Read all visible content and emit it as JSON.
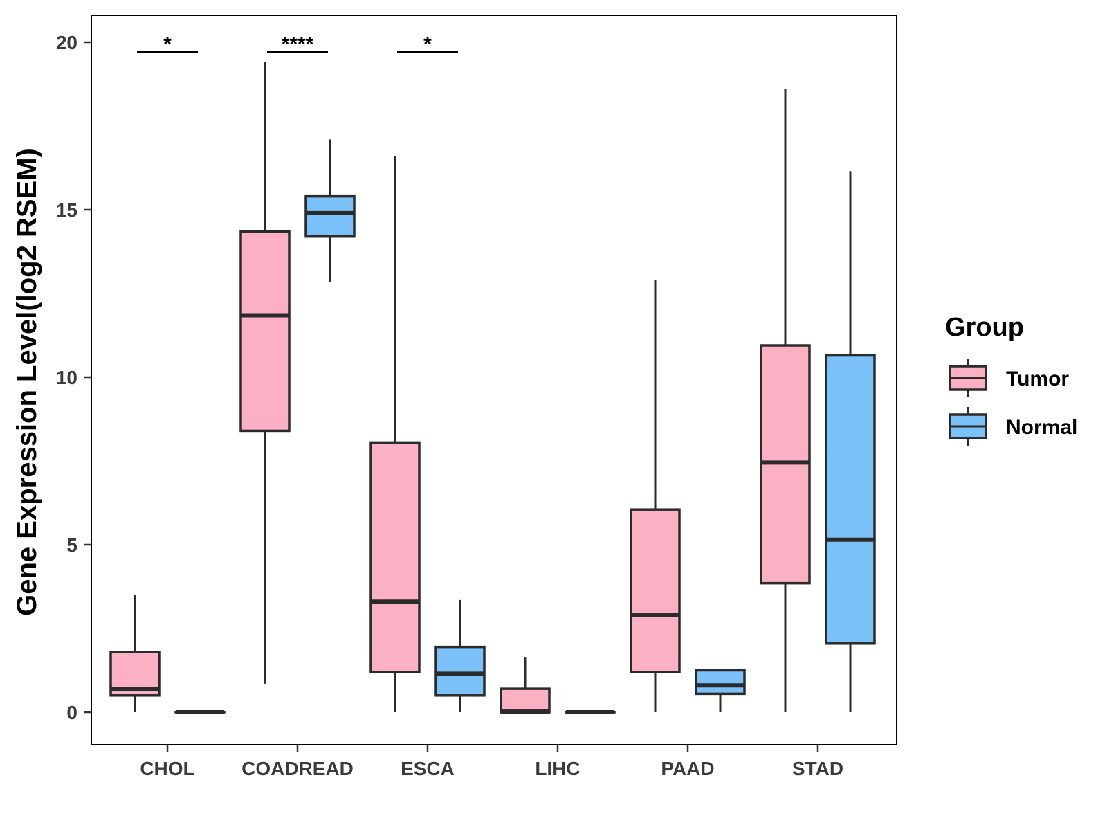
{
  "chart_data": {
    "type": "box",
    "title": "",
    "xlabel": "",
    "ylabel": "Gene Expression Level(log2 RSEM)",
    "ylim": [
      -1,
      20.8
    ],
    "yticks": [
      0,
      5,
      10,
      15,
      20
    ],
    "ytick_labels": [
      "0",
      "5",
      "10",
      "15",
      "20"
    ],
    "categories": [
      "CHOL",
      "COADREAD",
      "ESCA",
      "LIHC",
      "PAAD",
      "STAD"
    ],
    "legend": {
      "title": "Group",
      "position": "right",
      "items": [
        {
          "label": "Tumor",
          "color": "#FBB1C3"
        },
        {
          "label": "Normal",
          "color": "#79C1F8"
        }
      ]
    },
    "series": [
      {
        "name": "Tumor",
        "color": "#FBB1C3",
        "boxes": [
          {
            "category": "CHOL",
            "min": 0.0,
            "q1": 0.5,
            "median": 0.7,
            "q3": 1.8,
            "max": 3.5
          },
          {
            "category": "COADREAD",
            "min": 0.85,
            "q1": 8.4,
            "median": 11.85,
            "q3": 14.35,
            "max": 19.4
          },
          {
            "category": "ESCA",
            "min": 0.0,
            "q1": 1.2,
            "median": 3.3,
            "q3": 8.05,
            "max": 16.6
          },
          {
            "category": "LIHC",
            "min": 0.0,
            "q1": 0.0,
            "median": 0.02,
            "q3": 0.7,
            "max": 1.65
          },
          {
            "category": "PAAD",
            "min": 0.0,
            "q1": 1.2,
            "median": 2.9,
            "q3": 6.05,
            "max": 12.9
          },
          {
            "category": "STAD",
            "min": 0.0,
            "q1": 3.85,
            "median": 7.45,
            "q3": 10.95,
            "max": 18.6
          }
        ]
      },
      {
        "name": "Normal",
        "color": "#79C1F8",
        "boxes": [
          {
            "category": "CHOL",
            "min": 0.0,
            "q1": 0.0,
            "median": 0.0,
            "q3": 0.0,
            "max": 0.0
          },
          {
            "category": "COADREAD",
            "min": 12.85,
            "q1": 14.2,
            "median": 14.9,
            "q3": 15.4,
            "max": 17.1
          },
          {
            "category": "ESCA",
            "min": 0.0,
            "q1": 0.5,
            "median": 1.15,
            "q3": 1.95,
            "max": 3.35
          },
          {
            "category": "LIHC",
            "min": 0.0,
            "q1": 0.0,
            "median": 0.0,
            "q3": 0.0,
            "max": 0.0
          },
          {
            "category": "PAAD",
            "min": 0.0,
            "q1": 0.55,
            "median": 0.8,
            "q3": 1.25,
            "max": 1.25
          },
          {
            "category": "STAD",
            "min": 0.0,
            "q1": 2.05,
            "median": 5.15,
            "q3": 10.65,
            "max": 16.15
          }
        ]
      }
    ],
    "significance": [
      {
        "category": "CHOL",
        "label": "*",
        "y": 19.7
      },
      {
        "category": "COADREAD",
        "label": "****",
        "y": 19.7
      },
      {
        "category": "ESCA",
        "label": "*",
        "y": 19.7
      }
    ]
  }
}
